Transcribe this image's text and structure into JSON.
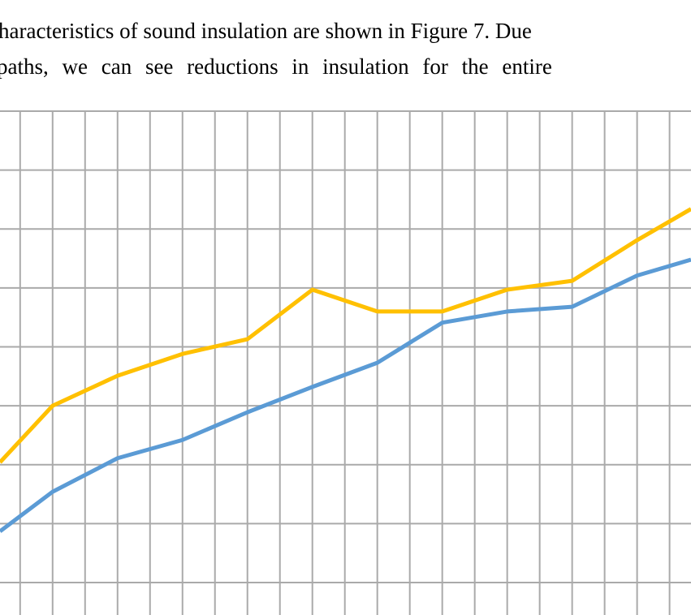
{
  "text": {
    "line1": "haracteristics of sound insulation are shown in Figure 7. Due",
    "line2": "paths, we can see reductions in insulation for the entire"
  },
  "chart_data": {
    "type": "line",
    "title": "",
    "xlabel": "",
    "ylabel": "",
    "grid": true,
    "xlim": [
      0.19,
      10.83
    ],
    "ylim": [
      0,
      8
    ],
    "x": [
      0.19,
      1,
      2,
      3,
      4,
      5,
      6,
      7,
      8,
      9,
      10,
      10.83
    ],
    "series": [
      {
        "name": "orange series",
        "color": "#FFC000",
        "values": [
          2.04,
          3.0,
          3.51,
          3.88,
          4.13,
          4.97,
          4.6,
          4.6,
          4.97,
          5.12,
          5.81,
          6.34
        ]
      },
      {
        "name": "blue series",
        "color": "#5B9BD5",
        "values": [
          0.87,
          1.54,
          2.11,
          2.42,
          2.89,
          3.32,
          3.73,
          4.41,
          4.6,
          4.68,
          5.21,
          5.48
        ]
      }
    ],
    "grid_color": "#AAAAAA"
  }
}
